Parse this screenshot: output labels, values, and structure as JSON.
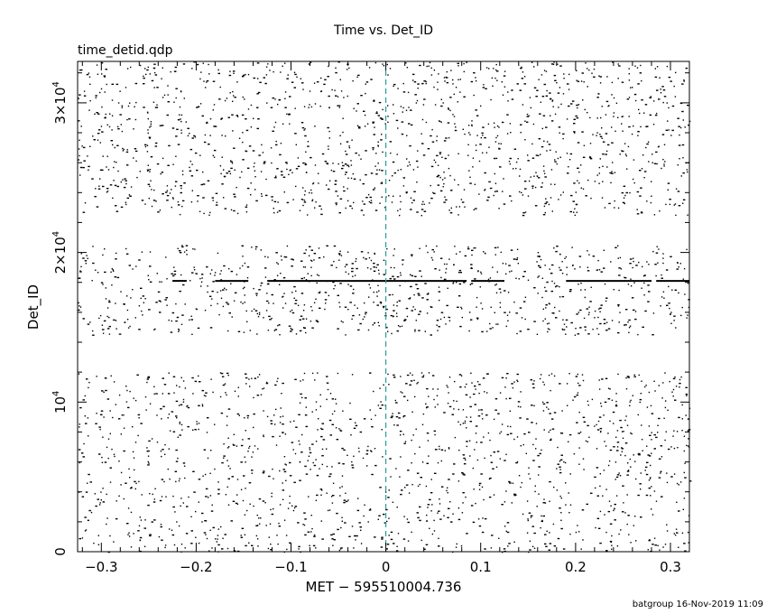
{
  "chart_data": {
    "type": "scatter",
    "title": "Time vs. Det_ID",
    "subtitle": "time_detid.qdp",
    "xlabel": "MET − 595510004.736",
    "ylabel": "Det_ID",
    "xlim": [
      -0.325,
      0.32
    ],
    "ylim": [
      0,
      32768
    ],
    "x_ticks": [
      {
        "value": -0.3,
        "label": "−0.3"
      },
      {
        "value": -0.2,
        "label": "−0.2"
      },
      {
        "value": -0.1,
        "label": "−0.1"
      },
      {
        "value": 0,
        "label": "0"
      },
      {
        "value": 0.1,
        "label": "0.1"
      },
      {
        "value": 0.2,
        "label": "0.2"
      },
      {
        "value": 0.3,
        "label": "0.3"
      }
    ],
    "y_ticks": [
      {
        "value": 0,
        "base": "0",
        "exp": ""
      },
      {
        "value": 10000,
        "base": "10",
        "exp": "4"
      },
      {
        "value": 20000,
        "base": "2×10",
        "exp": "4"
      },
      {
        "value": 30000,
        "base": "3×10",
        "exp": "4"
      }
    ],
    "reference_line": {
      "x": 0,
      "color": "#2a9d9d",
      "style": "dashed"
    },
    "density_bands": [
      {
        "y_range": [
          0,
          12000
        ]
      },
      {
        "y_range": [
          14500,
          20500
        ]
      },
      {
        "y_range": [
          22500,
          32768
        ]
      }
    ],
    "streaks": [
      {
        "y": 18100,
        "x_range": [
          -0.225,
          -0.21
        ]
      },
      {
        "y": 18100,
        "x_range": [
          -0.18,
          -0.145
        ]
      },
      {
        "y": 18100,
        "x_range": [
          -0.125,
          0.085
        ]
      },
      {
        "y": 18100,
        "x_range": [
          0.09,
          0.125
        ]
      },
      {
        "y": 18100,
        "x_range": [
          0.19,
          0.28
        ]
      },
      {
        "y": 18100,
        "x_range": [
          0.285,
          0.32
        ]
      }
    ],
    "marker_color": "#000000"
  },
  "footer": "batgroup 16-Nov-2019 11:09"
}
